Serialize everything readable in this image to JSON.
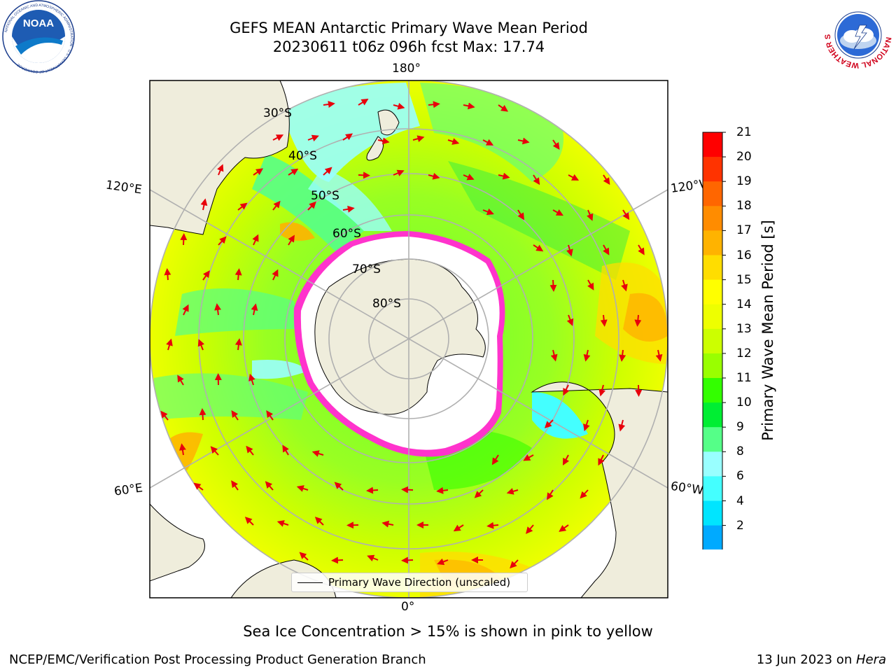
{
  "header": {
    "title_line1": "GEFS MEAN Antarctic Primary Wave Mean Period",
    "title_line2": "20230611 t06z 096h fcst   Max: 17.74"
  },
  "map": {
    "lon_labels": {
      "top": "180°",
      "bottom": "0°",
      "left_upper": "120°E",
      "left_lower": "60°E",
      "right_upper": "120°W",
      "right_lower": "60°W"
    },
    "lat_labels": [
      "30°S",
      "40°S",
      "50°S",
      "60°S",
      "70°S",
      "80°S"
    ],
    "legend_label": "Primary Wave Direction (unscaled)",
    "arrow_color": "#e8000b",
    "land_color": "#efeddc",
    "sea_ice_color": "#ff33cc"
  },
  "colorbar": {
    "label": "Primary Wave Mean Period [s]",
    "ticks": [
      "21",
      "20",
      "19",
      "18",
      "17",
      "16",
      "15",
      "14",
      "13",
      "12",
      "11",
      "10",
      "9",
      "8",
      "6",
      "4",
      "2"
    ],
    "colors": [
      "#ff0000",
      "#ff3300",
      "#ff6600",
      "#ff8c00",
      "#ffb300",
      "#ffdd00",
      "#ffff00",
      "#eeff00",
      "#ccff00",
      "#99ff00",
      "#33ff00",
      "#00ee33",
      "#55ff88",
      "#99ffff",
      "#44ffff",
      "#00e5ff",
      "#00aaff",
      "#0060ff"
    ],
    "extend_color": "#0000ff"
  },
  "caption": "Sea Ice Concentration > 15% is shown in pink to yellow",
  "footer": {
    "left": "NCEP/EMC/Verification Post Processing Product Generation Branch",
    "right_date": "13 Jun 2023 on ",
    "right_machine": "Hera"
  },
  "logos": {
    "noaa_text": "NOAA",
    "noaa_ring": "NATIONAL OCEANIC AND ATMOSPHERIC ADMINISTRATION · U.S. DEPARTMENT OF COMMERCE",
    "nws_ring": "NATIONAL WEATHER SERVICE"
  }
}
